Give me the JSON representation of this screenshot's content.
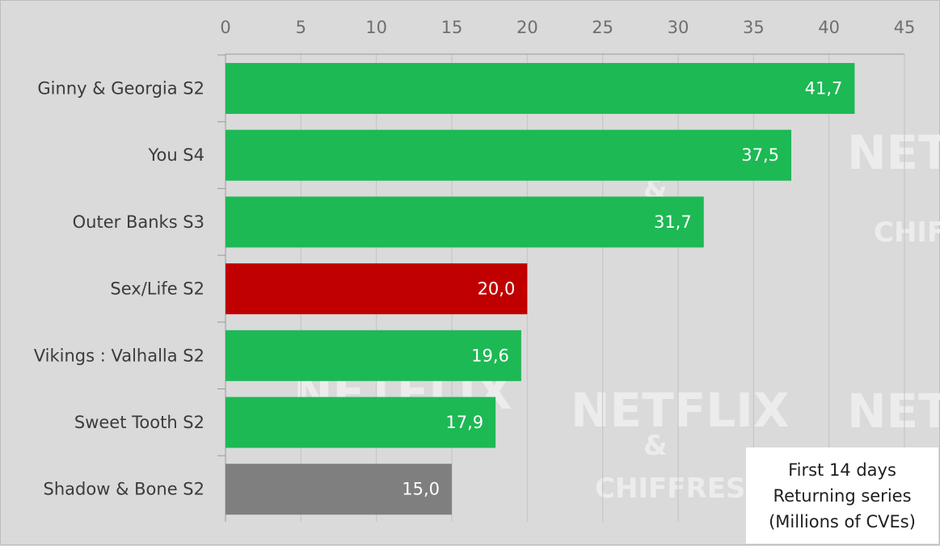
{
  "chart_data": {
    "type": "bar",
    "orientation": "horizontal",
    "categories": [
      "Ginny & Georgia S2",
      "You S4",
      "Outer Banks S3",
      "Sex/Life S2",
      "Vikings : Valhalla S2",
      "Sweet Tooth S2",
      "Shadow & Bone S2"
    ],
    "values": [
      41.7,
      37.5,
      31.7,
      20.0,
      19.6,
      17.9,
      15.0
    ],
    "value_labels": [
      "41,7",
      "37,5",
      "31,7",
      "20,0",
      "19,6",
      "17,9",
      "15,0"
    ],
    "bar_colors": [
      "#1db954",
      "#1db954",
      "#1db954",
      "#c00000",
      "#1db954",
      "#1db954",
      "#7f7f7f"
    ],
    "xlim": [
      0,
      45
    ],
    "x_ticks": [
      0,
      5,
      10,
      15,
      20,
      25,
      30,
      35,
      40,
      45
    ],
    "x_axis_position": "top",
    "grid": true,
    "annotation": [
      "First 14 days",
      "Returning series",
      "(Millions of CVEs)"
    ],
    "watermark": [
      "NETFLIX",
      "&",
      "CHIFFRES"
    ]
  }
}
